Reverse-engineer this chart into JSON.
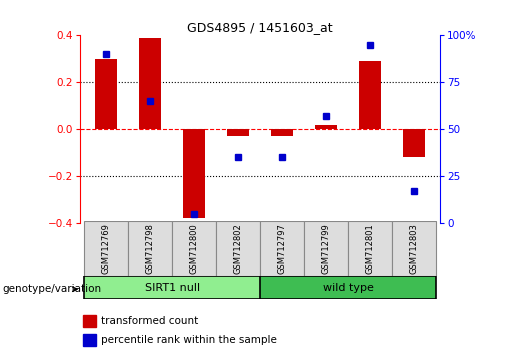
{
  "title": "GDS4895 / 1451603_at",
  "samples": [
    "GSM712769",
    "GSM712798",
    "GSM712800",
    "GSM712802",
    "GSM712797",
    "GSM712799",
    "GSM712801",
    "GSM712803"
  ],
  "transformed_count": [
    0.3,
    0.39,
    -0.38,
    -0.03,
    -0.03,
    0.02,
    0.29,
    -0.12
  ],
  "percentile_rank": [
    90,
    65,
    5,
    35,
    35,
    57,
    95,
    17
  ],
  "groups": [
    {
      "label": "SIRT1 null",
      "indices": [
        0,
        1,
        2,
        3
      ],
      "color": "#90EE90"
    },
    {
      "label": "wild type",
      "indices": [
        4,
        5,
        6,
        7
      ],
      "color": "#3EBD52"
    }
  ],
  "bar_color": "#CC0000",
  "dot_color": "#0000CC",
  "ylim_left": [
    -0.4,
    0.4
  ],
  "ylim_right": [
    0,
    100
  ],
  "yticks_left": [
    -0.4,
    -0.2,
    0.0,
    0.2,
    0.4
  ],
  "yticks_right": [
    0,
    25,
    50,
    75,
    100
  ],
  "ytick_labels_right": [
    "0",
    "25",
    "50",
    "75",
    "100%"
  ],
  "bar_width": 0.5,
  "legend_labels": [
    "transformed count",
    "percentile rank within the sample"
  ],
  "legend_colors": [
    "#CC0000",
    "#0000CC"
  ],
  "genotype_label": "genotype/variation",
  "background_color": "#FFFFFF"
}
